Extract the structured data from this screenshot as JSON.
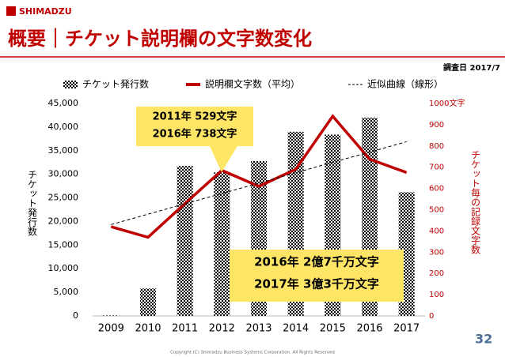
{
  "header": {
    "logo": "SHIMADZU",
    "title": "概要｜チケット説明欄の文字数変化",
    "date_label": "調査日",
    "date": "2017/7"
  },
  "chart_data": {
    "type": "bar_line",
    "categories": [
      "2009",
      "2010",
      "2011",
      "2012",
      "2013",
      "2014",
      "2015",
      "2016",
      "2017"
    ],
    "series": [
      {
        "name": "チケット発行数",
        "type": "bar",
        "color": "#000000",
        "values": [
          100,
          5800,
          31800,
          30400,
          32800,
          39000,
          38400,
          42000,
          26200
        ]
      },
      {
        "name": "説明欄文字数（平均）",
        "type": "line",
        "axis": "y2",
        "color": "#c00000",
        "values": [
          420,
          370,
          529,
          685,
          610,
          690,
          940,
          738,
          675
        ]
      },
      {
        "name": "近似曲線（線形）",
        "type": "dashed",
        "axis": "y2",
        "color": "#000000",
        "values": [
          430,
          479,
          528,
          576,
          625,
          674,
          723,
          771,
          820
        ]
      }
    ],
    "ylabel": "チケット発行数",
    "y2label": "チケット毎の記録文字数",
    "ylim": [
      0,
      45000
    ],
    "yticks": [
      0,
      {
        "value": 5000,
        "label": "5,000"
      },
      {
        "value": 10000,
        "label": "10,000"
      },
      {
        "value": 15000,
        "label": "15,000"
      },
      {
        "value": 20000,
        "label": "20,000"
      },
      {
        "value": 25000,
        "label": "25,000"
      },
      {
        "value": 30000,
        "label": "30,000"
      },
      {
        "value": 35000,
        "label": "35,000"
      },
      {
        "value": 40000,
        "label": "40,000"
      },
      {
        "value": 45000,
        "label": "45,000"
      }
    ],
    "y2lim": [
      0,
      1000
    ],
    "y2ticks": [
      0,
      100,
      200,
      300,
      400,
      500,
      600,
      700,
      800,
      900,
      {
        "value": 1000,
        "label": "1000文字"
      }
    ],
    "annotations": [
      [
        "2011年 529文字",
        "2016年 738文字"
      ],
      [
        "2016年 2億7千万文字",
        "2017年 3億3千万文字"
      ]
    ]
  },
  "footer": {
    "page": "32",
    "copyright": "Copyright (C) Shimadzu Business Systems Corporation. All Rights Reserved"
  }
}
